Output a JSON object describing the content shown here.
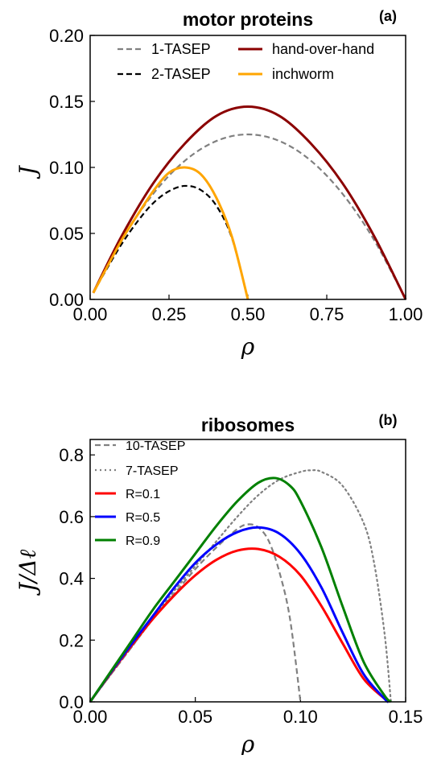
{
  "chart_data": [
    {
      "type": "line",
      "title": "motor proteins",
      "panel_label": "(a)",
      "xlabel": "ρ",
      "ylabel": "J",
      "xlim": [
        0,
        1
      ],
      "ylim": [
        0,
        0.2
      ],
      "xticks": [
        "0.00",
        "0.25",
        "0.50",
        "0.75",
        "1.00"
      ],
      "yticks": [
        "0.00",
        "0.05",
        "0.10",
        "0.15",
        "0.20"
      ],
      "legend_position": "top",
      "series": [
        {
          "name": "1-TASEP",
          "color": "#808080",
          "style": "dashed",
          "x": [
            0.01,
            0.1,
            0.2,
            0.3,
            0.4,
            0.5,
            0.6,
            0.7,
            0.8,
            0.9,
            1.0
          ],
          "y": [
            0.005,
            0.045,
            0.08,
            0.105,
            0.12,
            0.125,
            0.12,
            0.105,
            0.08,
            0.045,
            0.0
          ]
        },
        {
          "name": "2-TASEP",
          "color": "#000000",
          "style": "dashed",
          "x": [
            0.01,
            0.05,
            0.1,
            0.15,
            0.2,
            0.25,
            0.3,
            0.35,
            0.4,
            0.45,
            0.5
          ],
          "y": [
            0.005,
            0.022,
            0.042,
            0.059,
            0.073,
            0.082,
            0.086,
            0.083,
            0.071,
            0.046,
            0.0
          ]
        },
        {
          "name": "hand-over-hand",
          "color": "#8b0000",
          "style": "solid",
          "x": [
            0.01,
            0.1,
            0.2,
            0.3,
            0.4,
            0.5,
            0.6,
            0.7,
            0.8,
            0.9,
            1.0
          ],
          "y": [
            0.005,
            0.048,
            0.088,
            0.118,
            0.139,
            0.146,
            0.139,
            0.118,
            0.088,
            0.048,
            0.0
          ]
        },
        {
          "name": "inchworm",
          "color": "#ffa500",
          "style": "solid",
          "x": [
            0.01,
            0.05,
            0.1,
            0.15,
            0.2,
            0.25,
            0.3,
            0.35,
            0.4,
            0.45,
            0.5
          ],
          "y": [
            0.005,
            0.023,
            0.045,
            0.064,
            0.082,
            0.096,
            0.1,
            0.095,
            0.077,
            0.047,
            0.0
          ]
        }
      ]
    },
    {
      "type": "line",
      "title": "ribosomes",
      "panel_label": "(b)",
      "xlabel": "ρ",
      "ylabel": "J/Δℓ",
      "xlim": [
        0,
        0.15
      ],
      "ylim": [
        0,
        0.85
      ],
      "xticks": [
        "0.00",
        "0.05",
        "0.10",
        "0.15"
      ],
      "yticks": [
        "0.0",
        "0.2",
        "0.4",
        "0.6",
        "0.8"
      ],
      "legend_position": "top-left",
      "series": [
        {
          "name": "10-TASEP",
          "color": "#808080",
          "style": "dashed",
          "x": [
            0.0,
            0.01,
            0.02,
            0.03,
            0.04,
            0.05,
            0.06,
            0.07,
            0.075,
            0.08,
            0.085,
            0.09,
            0.095,
            0.1
          ],
          "y": [
            0.0,
            0.09,
            0.18,
            0.27,
            0.35,
            0.43,
            0.5,
            0.56,
            0.575,
            0.565,
            0.52,
            0.42,
            0.27,
            0.0
          ]
        },
        {
          "name": "7-TASEP",
          "color": "#808080",
          "style": "dotted",
          "x": [
            0.0,
            0.01,
            0.02,
            0.03,
            0.04,
            0.05,
            0.06,
            0.07,
            0.08,
            0.09,
            0.1,
            0.105,
            0.11,
            0.12,
            0.13,
            0.135,
            0.14,
            0.143
          ],
          "y": [
            0.0,
            0.09,
            0.18,
            0.27,
            0.36,
            0.44,
            0.52,
            0.6,
            0.67,
            0.72,
            0.745,
            0.75,
            0.745,
            0.7,
            0.58,
            0.45,
            0.22,
            0.0
          ]
        },
        {
          "name": "R=0.1",
          "color": "#ff0000",
          "style": "solid",
          "x": [
            0.0,
            0.01,
            0.02,
            0.03,
            0.04,
            0.05,
            0.06,
            0.07,
            0.08,
            0.09,
            0.1,
            0.11,
            0.12,
            0.13,
            0.14,
            0.142
          ],
          "y": [
            0.0,
            0.095,
            0.185,
            0.27,
            0.345,
            0.41,
            0.46,
            0.49,
            0.495,
            0.47,
            0.41,
            0.31,
            0.19,
            0.075,
            0.01,
            0.0
          ]
        },
        {
          "name": "R=0.5",
          "color": "#0000ff",
          "style": "solid",
          "x": [
            0.0,
            0.01,
            0.02,
            0.03,
            0.04,
            0.05,
            0.06,
            0.07,
            0.08,
            0.09,
            0.1,
            0.11,
            0.12,
            0.13,
            0.14,
            0.142
          ],
          "y": [
            0.0,
            0.097,
            0.19,
            0.28,
            0.37,
            0.45,
            0.51,
            0.55,
            0.565,
            0.545,
            0.48,
            0.37,
            0.225,
            0.09,
            0.01,
            0.0
          ]
        },
        {
          "name": "R=0.9",
          "color": "#008000",
          "style": "solid",
          "x": [
            0.0,
            0.01,
            0.02,
            0.03,
            0.04,
            0.05,
            0.06,
            0.07,
            0.08,
            0.088,
            0.095,
            0.1,
            0.11,
            0.12,
            0.13,
            0.14,
            0.143
          ],
          "y": [
            0.0,
            0.1,
            0.2,
            0.3,
            0.39,
            0.48,
            0.57,
            0.65,
            0.71,
            0.725,
            0.7,
            0.65,
            0.5,
            0.31,
            0.13,
            0.02,
            0.0
          ]
        }
      ]
    }
  ]
}
